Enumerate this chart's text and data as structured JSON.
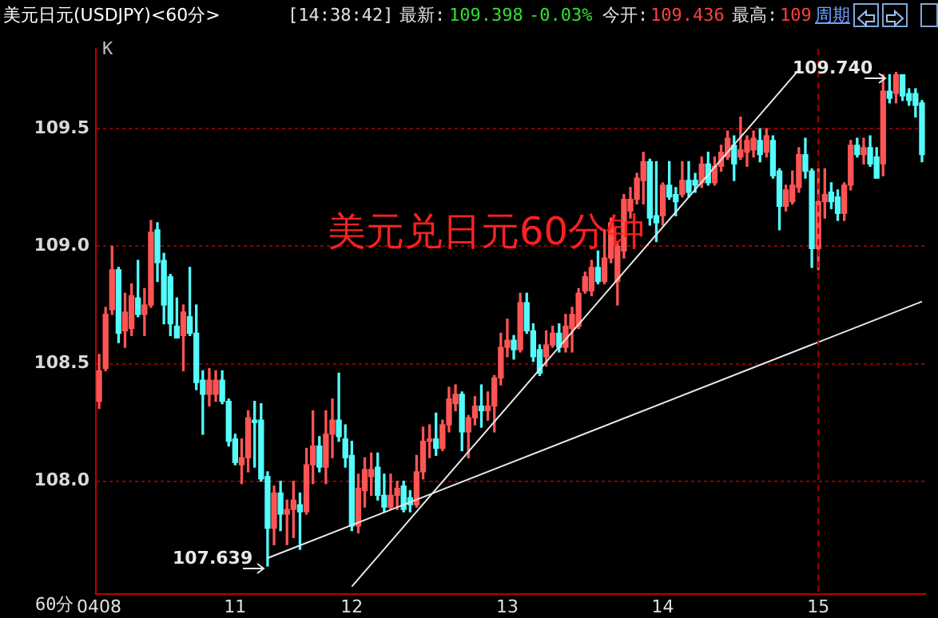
{
  "chart_data": {
    "type": "candlestick",
    "title": "美元日元(USDJPY)<60分>",
    "xlabel": "60分",
    "categories": [
      "0408",
      null,
      null,
      null,
      null,
      null,
      null,
      null,
      null,
      null,
      null,
      null,
      null,
      null,
      null,
      null,
      null,
      null,
      null,
      null,
      null,
      "11",
      null,
      null,
      null,
      null,
      null,
      null,
      null,
      null,
      null,
      null,
      null,
      null,
      null,
      null,
      null,
      null,
      null,
      "12",
      null,
      null,
      null,
      null,
      null,
      null,
      null,
      null,
      null,
      null,
      null,
      null,
      null,
      null,
      null,
      null,
      null,
      null,
      null,
      null,
      null,
      null,
      null,
      "13",
      null,
      null,
      null,
      null,
      null,
      null,
      null,
      null,
      null,
      null,
      null,
      null,
      null,
      null,
      null,
      null,
      null,
      null,
      null,
      null,
      null,
      null,
      null,
      "14",
      null,
      null,
      null,
      null,
      null,
      null,
      null,
      null,
      null,
      null,
      null,
      null,
      null,
      null,
      null,
      null,
      null,
      null,
      null,
      null,
      null,
      null,
      null,
      "15",
      null,
      null,
      null,
      null,
      null,
      null,
      null,
      null,
      null,
      null,
      null,
      null,
      null,
      null,
      null,
      null
    ],
    "ohlc": [
      [
        108.34,
        108.54,
        108.31,
        108.47
      ],
      [
        108.48,
        108.74,
        108.47,
        108.71
      ],
      [
        108.73,
        109.0,
        108.71,
        108.9
      ],
      [
        108.9,
        108.91,
        108.59,
        108.63
      ],
      [
        108.64,
        108.8,
        108.57,
        108.72
      ],
      [
        108.65,
        108.84,
        108.62,
        108.79
      ],
      [
        108.78,
        108.94,
        108.7,
        108.71
      ],
      [
        108.71,
        108.82,
        108.62,
        108.75
      ],
      [
        108.75,
        109.11,
        108.74,
        109.06
      ],
      [
        109.07,
        109.1,
        108.85,
        108.93
      ],
      [
        108.94,
        108.97,
        108.67,
        108.75
      ],
      [
        108.87,
        108.88,
        108.62,
        108.67
      ],
      [
        108.66,
        108.78,
        108.61,
        108.61
      ],
      [
        108.62,
        108.75,
        108.47,
        108.72
      ],
      [
        108.7,
        108.91,
        108.62,
        108.63
      ],
      [
        108.63,
        108.75,
        108.39,
        108.42
      ],
      [
        108.43,
        108.47,
        108.2,
        108.37
      ],
      [
        108.37,
        108.48,
        108.32,
        108.43
      ],
      [
        108.37,
        108.47,
        108.34,
        108.43
      ],
      [
        108.43,
        108.47,
        108.33,
        108.34
      ],
      [
        108.34,
        108.35,
        108.15,
        108.17
      ],
      [
        108.18,
        108.2,
        108.07,
        108.08
      ],
      [
        108.07,
        108.18,
        107.99,
        108.1
      ],
      [
        108.1,
        108.3,
        108.04,
        108.27
      ],
      [
        108.26,
        108.34,
        108.06,
        108.25
      ],
      [
        108.26,
        108.33,
        108.0,
        108.01
      ],
      [
        108.02,
        108.04,
        107.639,
        107.8
      ],
      [
        107.8,
        107.98,
        107.73,
        107.95
      ],
      [
        107.95,
        108.0,
        107.79,
        107.86
      ],
      [
        107.86,
        107.92,
        107.73,
        107.88
      ],
      [
        107.88,
        108.0,
        107.76,
        107.92
      ],
      [
        107.9,
        107.95,
        107.71,
        107.87
      ],
      [
        107.87,
        108.14,
        107.86,
        108.07
      ],
      [
        108.07,
        108.3,
        107.99,
        108.15
      ],
      [
        108.15,
        108.19,
        108.04,
        108.06
      ],
      [
        108.06,
        108.3,
        107.99,
        108.2
      ],
      [
        108.2,
        108.35,
        108.1,
        108.26
      ],
      [
        108.26,
        108.46,
        108.17,
        108.19
      ],
      [
        108.18,
        108.24,
        108.06,
        108.1
      ],
      [
        108.11,
        108.17,
        107.79,
        107.81
      ],
      [
        107.81,
        108.03,
        107.78,
        107.97
      ],
      [
        107.96,
        108.1,
        107.89,
        108.05
      ],
      [
        108.02,
        108.12,
        107.94,
        108.05
      ],
      [
        108.06,
        108.12,
        107.92,
        107.94
      ],
      [
        107.94,
        108.03,
        107.87,
        107.89
      ],
      [
        107.89,
        108.03,
        107.88,
        107.94
      ],
      [
        107.94,
        108.0,
        107.88,
        107.97
      ],
      [
        107.98,
        108.0,
        107.87,
        107.88
      ],
      [
        107.93,
        107.96,
        107.87,
        107.9
      ],
      [
        107.9,
        108.11,
        107.89,
        108.04
      ],
      [
        108.04,
        108.23,
        108.01,
        108.17
      ],
      [
        108.17,
        108.24,
        108.1,
        108.18
      ],
      [
        108.18,
        108.29,
        108.11,
        108.14
      ],
      [
        108.14,
        108.26,
        108.13,
        108.24
      ],
      [
        108.24,
        108.4,
        108.21,
        108.35
      ],
      [
        108.33,
        108.41,
        108.3,
        108.37
      ],
      [
        108.37,
        108.38,
        108.13,
        108.21
      ],
      [
        108.21,
        108.28,
        108.1,
        108.27
      ],
      [
        108.27,
        108.36,
        108.24,
        108.32
      ],
      [
        108.32,
        108.41,
        108.23,
        108.3
      ],
      [
        108.3,
        108.38,
        108.26,
        108.32
      ],
      [
        108.32,
        108.45,
        108.21,
        108.44
      ],
      [
        108.44,
        108.63,
        108.41,
        108.57
      ],
      [
        108.57,
        108.69,
        108.53,
        108.6
      ],
      [
        108.6,
        108.62,
        108.52,
        108.56
      ],
      [
        108.56,
        108.8,
        108.55,
        108.76
      ],
      [
        108.76,
        108.8,
        108.63,
        108.64
      ],
      [
        108.64,
        108.67,
        108.51,
        108.53
      ],
      [
        108.56,
        108.58,
        108.45,
        108.46
      ],
      [
        108.53,
        108.64,
        108.49,
        108.58
      ],
      [
        108.58,
        108.66,
        108.57,
        108.63
      ],
      [
        108.63,
        108.67,
        108.55,
        108.57
      ],
      [
        108.57,
        108.71,
        108.55,
        108.66
      ],
      [
        108.65,
        108.74,
        108.55,
        108.71
      ],
      [
        108.66,
        108.82,
        108.65,
        108.8
      ],
      [
        108.81,
        108.89,
        108.8,
        108.87
      ],
      [
        108.81,
        108.94,
        108.79,
        108.91
      ],
      [
        108.91,
        108.98,
        108.84,
        108.85
      ],
      [
        108.85,
        109.07,
        108.84,
        108.95
      ],
      [
        108.95,
        109.12,
        108.93,
        109.1
      ],
      [
        108.85,
        109.02,
        108.75,
        109.0
      ],
      [
        108.98,
        109.22,
        108.95,
        109.2
      ],
      [
        109.15,
        109.25,
        109.12,
        109.2
      ],
      [
        109.2,
        109.31,
        109.18,
        109.29
      ],
      [
        109.28,
        109.4,
        109.18,
        109.36
      ],
      [
        109.36,
        109.37,
        109.09,
        109.12
      ],
      [
        109.13,
        109.36,
        109.02,
        109.1
      ],
      [
        109.13,
        109.27,
        109.09,
        109.26
      ],
      [
        109.26,
        109.36,
        109.2,
        109.21
      ],
      [
        109.22,
        109.25,
        109.13,
        109.19
      ],
      [
        109.22,
        109.36,
        109.21,
        109.28
      ],
      [
        109.28,
        109.36,
        109.21,
        109.23
      ],
      [
        109.28,
        109.31,
        109.23,
        109.26
      ],
      [
        109.27,
        109.38,
        109.25,
        109.35
      ],
      [
        109.35,
        109.4,
        109.26,
        109.27
      ],
      [
        109.27,
        109.38,
        109.26,
        109.34
      ],
      [
        109.34,
        109.43,
        109.32,
        109.4
      ],
      [
        109.38,
        109.49,
        109.37,
        109.46
      ],
      [
        109.43,
        109.47,
        109.28,
        109.35
      ],
      [
        109.38,
        109.55,
        109.37,
        109.41
      ],
      [
        109.4,
        109.47,
        109.34,
        109.45
      ],
      [
        109.41,
        109.49,
        109.38,
        109.46
      ],
      [
        109.45,
        109.5,
        109.36,
        109.39
      ],
      [
        109.4,
        109.5,
        109.38,
        109.47
      ],
      [
        109.45,
        109.47,
        109.29,
        109.3
      ],
      [
        109.32,
        109.33,
        109.07,
        109.17
      ],
      [
        109.17,
        109.26,
        109.15,
        109.24
      ],
      [
        109.19,
        109.32,
        109.18,
        109.26
      ],
      [
        109.25,
        109.42,
        109.23,
        109.39
      ],
      [
        109.39,
        109.46,
        109.29,
        109.32
      ],
      [
        109.32,
        109.33,
        108.91,
        108.99
      ],
      [
        108.99,
        109.33,
        108.9,
        109.19
      ],
      [
        109.19,
        109.33,
        109.12,
        109.22
      ],
      [
        109.23,
        109.27,
        109.16,
        109.19
      ],
      [
        109.21,
        109.24,
        109.11,
        109.14
      ],
      [
        109.14,
        109.27,
        109.11,
        109.26
      ],
      [
        109.26,
        109.45,
        109.24,
        109.43
      ],
      [
        109.43,
        109.46,
        109.38,
        109.39
      ],
      [
        109.39,
        109.46,
        109.35,
        109.42
      ],
      [
        109.42,
        109.47,
        109.34,
        109.35
      ],
      [
        109.38,
        109.42,
        109.29,
        109.29
      ],
      [
        109.35,
        109.73,
        109.3,
        109.66
      ],
      [
        109.66,
        109.73,
        109.61,
        109.63
      ],
      [
        109.65,
        109.74,
        109.61,
        109.73
      ],
      [
        109.73,
        109.73,
        109.62,
        109.64
      ],
      [
        109.65,
        109.67,
        109.6,
        109.62
      ],
      [
        109.65,
        109.67,
        109.55,
        109.6
      ],
      [
        109.61,
        109.62,
        109.36,
        109.39
      ]
    ],
    "colors": [
      "#ff5454",
      "#ff5454",
      "#ff5454",
      "#54fcfc",
      "#ff5454",
      "#ff5454",
      "#54fcfc",
      "#ff5454",
      "#ff5454",
      "#54fcfc",
      "#54fcfc",
      "#54fcfc",
      "#54fcfc",
      "#ff5454",
      "#54fcfc",
      "#54fcfc",
      "#54fcfc",
      "#ff5454",
      "#ff5454",
      "#54fcfc",
      "#54fcfc",
      "#54fcfc",
      "#ff5454",
      "#ff5454",
      "#54fcfc",
      "#54fcfc",
      "#54fcfc",
      "#ff5454",
      "#54fcfc",
      "#ff5454",
      "#ff5454",
      "#54fcfc",
      "#ff5454",
      "#ff5454",
      "#54fcfc",
      "#ff5454",
      "#ff5454",
      "#54fcfc",
      "#54fcfc",
      "#54fcfc",
      "#ff5454",
      "#ff5454",
      "#ff5454",
      "#54fcfc",
      "#54fcfc",
      "#ff5454",
      "#ff5454",
      "#54fcfc",
      "#54fcfc",
      "#ff5454",
      "#ff5454",
      "#ff5454",
      "#54fcfc",
      "#ff5454",
      "#ff5454",
      "#ff5454",
      "#54fcfc",
      "#ff5454",
      "#ff5454",
      "#54fcfc",
      "#ff5454",
      "#ff5454",
      "#ff5454",
      "#ff5454",
      "#54fcfc",
      "#ff5454",
      "#54fcfc",
      "#54fcfc",
      "#54fcfc",
      "#ff5454",
      "#ff5454",
      "#54fcfc",
      "#ff5454",
      "#ff5454",
      "#ff5454",
      "#ff5454",
      "#ff5454",
      "#54fcfc",
      "#ff5454",
      "#ff5454",
      "#ff5454",
      "#ff5454",
      "#ff5454",
      "#ff5454",
      "#ff5454",
      "#54fcfc",
      "#54fcfc",
      "#ff5454",
      "#54fcfc",
      "#54fcfc",
      "#ff5454",
      "#54fcfc",
      "#54fcfc",
      "#ff5454",
      "#54fcfc",
      "#ff5454",
      "#ff5454",
      "#ff5454",
      "#54fcfc",
      "#ff5454",
      "#ff5454",
      "#ff5454",
      "#54fcfc",
      "#ff5454",
      "#54fcfc",
      "#54fcfc",
      "#ff5454",
      "#ff5454",
      "#ff5454",
      "#54fcfc",
      "#54fcfc",
      "#ff5454",
      "#ff5454",
      "#54fcfc",
      "#54fcfc",
      "#ff5454",
      "#ff5454",
      "#54fcfc",
      "#ff5454",
      "#54fcfc",
      "#54fcfc",
      "#ff5454",
      "#54fcfc",
      "#ff5454",
      "#54fcfc",
      "#54fcfc",
      "#54fcfc",
      "#54fcfc"
    ],
    "series": [
      {
        "type": "line",
        "color": "#e8e8e8",
        "values": [
          null,
          null,
          null,
          null,
          null,
          null,
          null,
          null,
          null,
          null,
          null,
          null,
          null,
          null,
          null,
          null,
          null,
          null,
          null,
          null,
          null,
          null,
          null,
          null,
          null,
          null,
          107.673,
          null,
          null,
          null,
          null,
          null,
          null,
          null,
          null,
          null,
          null,
          null,
          null,
          null,
          null,
          null,
          null,
          null,
          null,
          null,
          null,
          null,
          null,
          null,
          null,
          null,
          null,
          null,
          null,
          null,
          null,
          null,
          null,
          null,
          null,
          null,
          null,
          null,
          null,
          null,
          null,
          null,
          null,
          null,
          null,
          null,
          null,
          null,
          null,
          null,
          null,
          null,
          null,
          null,
          null,
          null,
          null,
          null,
          null,
          null,
          null,
          null,
          null,
          null,
          null,
          null,
          null,
          null,
          null,
          null,
          null,
          null,
          null,
          null,
          null,
          null,
          null,
          null,
          null,
          null,
          null,
          null,
          null,
          null,
          null,
          null,
          null,
          null,
          null,
          null,
          null,
          null,
          null,
          null,
          null,
          null,
          null,
          null,
          null,
          null,
          null,
          108.765
        ]
      },
      {
        "type": "line",
        "color": "#e8e8e8",
        "values": [
          null,
          null,
          null,
          null,
          null,
          null,
          null,
          null,
          null,
          null,
          null,
          null,
          null,
          null,
          null,
          null,
          null,
          null,
          null,
          null,
          null,
          null,
          null,
          null,
          null,
          null,
          null,
          null,
          null,
          null,
          null,
          null,
          null,
          null,
          null,
          null,
          null,
          null,
          null,
          107.552,
          null,
          null,
          null,
          null,
          null,
          null,
          null,
          null,
          null,
          null,
          null,
          null,
          null,
          null,
          null,
          null,
          null,
          null,
          null,
          null,
          null,
          null,
          null,
          null,
          null,
          null,
          null,
          null,
          null,
          null,
          null,
          null,
          null,
          null,
          null,
          null,
          null,
          null,
          null,
          null,
          null,
          null,
          null,
          null,
          null,
          null,
          null,
          null,
          null,
          null,
          null,
          null,
          null,
          null,
          null,
          null,
          null,
          null,
          null,
          null,
          null,
          null,
          null,
          null,
          null,
          null,
          null,
          null,
          109.751,
          null,
          null,
          null,
          null,
          null,
          null,
          null,
          null,
          null,
          null,
          null,
          null,
          null,
          null,
          null,
          null,
          null,
          null,
          null
        ]
      }
    ],
    "ylim": [
      107.52,
      109.84
    ],
    "yticks": [
      {
        "value": 108,
        "label": "108.0"
      },
      {
        "value": 108.5,
        "label": "108.5"
      },
      {
        "value": 109,
        "label": "109.0"
      },
      {
        "value": 109.5,
        "label": "109.5"
      }
    ],
    "grid": "y",
    "ref_lines": [
      {
        "axis": "x",
        "value": "15",
        "color": "#b00000",
        "line_style": "dashed"
      }
    ],
    "annotations": [
      "[14:38:42]",
      "最新:",
      "109.398",
      "-0.03%",
      "今开:",
      "109.436",
      "最高:",
      "109",
      "周期",
      "K",
      "美元兑日元60分钟",
      "107.639",
      "109.740"
    ]
  }
}
